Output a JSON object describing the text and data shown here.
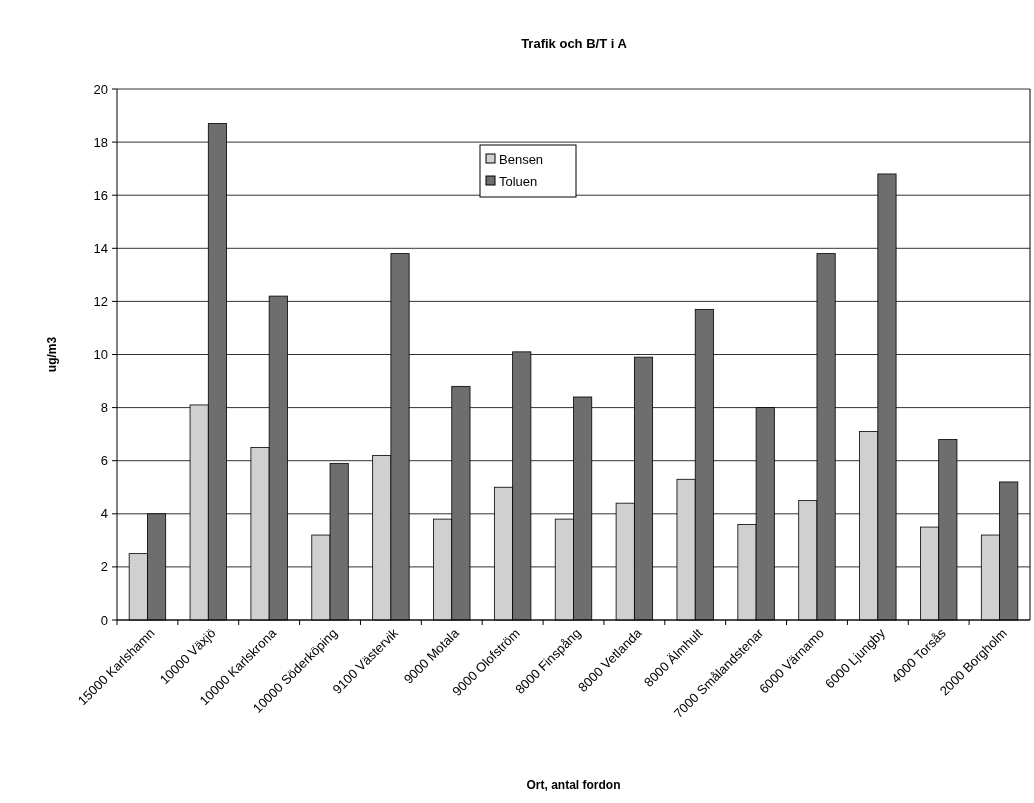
{
  "chart_data": {
    "type": "bar",
    "title": "Trafik och B/T i A",
    "xlabel": "Ort, antal fordon",
    "ylabel": "ug/m3",
    "categories": [
      "15000 Karlshamn",
      "10000 Växjö",
      "10000 Karlskrona",
      "10000 Söderköping",
      "9100 Västervik",
      "9000 Motala",
      "9000 Olofström",
      "8000 Finspång",
      "8000 Vetlanda",
      "8000 Älmhult",
      "7000 Smålandstenar",
      "6000 Värnamo",
      "6000 Ljungby",
      "4000 Torsås",
      "2000 Borgholm"
    ],
    "series": [
      {
        "name": "Bensen",
        "color": "#d0d0d0",
        "values": [
          2.5,
          8.1,
          6.5,
          3.2,
          6.2,
          3.8,
          5.0,
          3.8,
          4.4,
          5.3,
          3.6,
          4.5,
          7.1,
          3.5,
          3.2
        ]
      },
      {
        "name": "Toluen",
        "color": "#6e6e6e",
        "values": [
          4.0,
          18.7,
          12.2,
          5.9,
          13.8,
          8.8,
          10.1,
          8.4,
          9.9,
          11.7,
          8.0,
          13.8,
          16.8,
          6.8,
          5.2
        ]
      }
    ],
    "ylim": [
      0,
      20
    ],
    "yticks": [
      0,
      2,
      4,
      6,
      8,
      10,
      12,
      14,
      16,
      18,
      20
    ],
    "grid": "y",
    "legend": "top"
  }
}
